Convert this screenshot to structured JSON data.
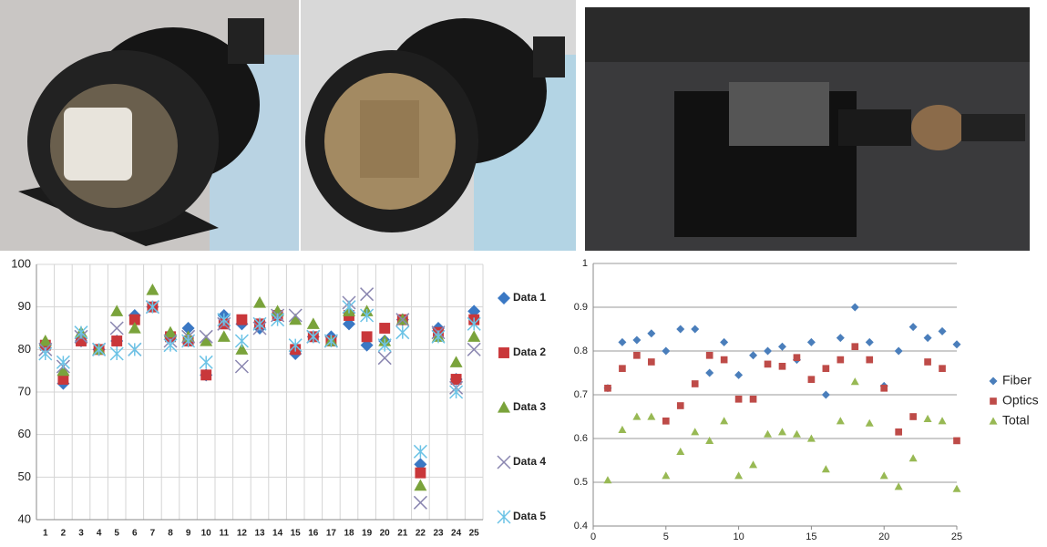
{
  "chart_data": [
    {
      "type": "scatter",
      "categories": [
        "1",
        "2",
        "3",
        "4",
        "5",
        "6",
        "7",
        "8",
        "9",
        "10",
        "11",
        "12",
        "13",
        "14",
        "15",
        "16",
        "17",
        "18",
        "19",
        "20",
        "21",
        "22",
        "23",
        "24",
        "25"
      ],
      "ylim": [
        40,
        100
      ],
      "yticks": [
        40,
        50,
        60,
        70,
        80,
        90,
        100
      ],
      "grid": "both",
      "legend": "right",
      "series": [
        {
          "name": "Data 1",
          "color": "#3a78c4",
          "marker": "diamond",
          "values": [
            81,
            72,
            82,
            80,
            82,
            88,
            90,
            83,
            85,
            74,
            88,
            86,
            85,
            88,
            79,
            83,
            83,
            86,
            81,
            82,
            87,
            53,
            85,
            73,
            89
          ]
        },
        {
          "name": "Data 2",
          "color": "#c9373a",
          "marker": "square",
          "values": [
            81,
            73,
            82,
            80,
            82,
            87,
            90,
            83,
            82,
            74,
            86,
            87,
            86,
            88,
            80,
            83,
            82,
            88,
            83,
            85,
            87,
            51,
            84,
            73,
            87
          ]
        },
        {
          "name": "Data 3",
          "color": "#7aa33b",
          "marker": "triangle",
          "values": [
            82,
            75,
            84,
            80,
            89,
            85,
            94,
            84,
            83,
            82,
            83,
            80,
            91,
            89,
            87,
            86,
            82,
            89,
            89,
            82,
            87,
            48,
            83,
            77,
            83
          ]
        },
        {
          "name": "Data 4",
          "color": "#8a86b0",
          "marker": "x",
          "values": [
            80,
            76,
            83,
            80,
            85,
            80,
            90,
            82,
            83,
            83,
            86,
            76,
            85,
            88,
            88,
            83,
            82,
            91,
            93,
            78,
            87,
            44,
            84,
            71,
            80
          ]
        },
        {
          "name": "Data 5",
          "color": "#6cc3e6",
          "marker": "asterisk",
          "values": [
            79,
            77,
            84,
            80,
            79,
            80,
            90,
            81,
            82,
            77,
            87,
            82,
            86,
            87,
            81,
            83,
            82,
            90,
            88,
            81,
            84,
            56,
            83,
            70,
            86
          ]
        }
      ]
    },
    {
      "type": "scatter",
      "x": [
        1,
        2,
        3,
        4,
        5,
        6,
        7,
        8,
        9,
        10,
        11,
        12,
        13,
        14,
        15,
        16,
        17,
        18,
        19,
        20,
        21,
        22,
        23,
        24,
        25
      ],
      "xlim": [
        0,
        25
      ],
      "xticks": [
        0,
        5,
        10,
        15,
        20,
        25
      ],
      "ylim": [
        0.4,
        1
      ],
      "yticks": [
        0.4,
        0.5,
        0.6,
        0.7,
        0.8,
        0.9,
        1
      ],
      "grid": "y",
      "legend": "right",
      "series": [
        {
          "name": "Fiber",
          "color": "#4a7ebb",
          "marker": "diamond",
          "values": [
            0.715,
            0.82,
            0.825,
            0.84,
            0.8,
            0.85,
            0.85,
            0.75,
            0.82,
            0.745,
            0.79,
            0.8,
            0.81,
            0.78,
            0.82,
            0.7,
            0.83,
            0.9,
            0.82,
            0.72,
            0.8,
            0.855,
            0.83,
            0.845,
            0.815
          ]
        },
        {
          "name": "Optics",
          "color": "#be4b48",
          "marker": "square",
          "values": [
            0.715,
            0.76,
            0.79,
            0.775,
            0.64,
            0.675,
            0.725,
            0.79,
            0.78,
            0.69,
            0.69,
            0.77,
            0.765,
            0.785,
            0.735,
            0.76,
            0.78,
            0.81,
            0.78,
            0.715,
            0.615,
            0.65,
            0.775,
            0.76,
            0.595
          ]
        },
        {
          "name": "Total",
          "color": "#98b954",
          "marker": "triangle",
          "values": [
            0.505,
            0.62,
            0.65,
            0.65,
            0.515,
            0.57,
            0.615,
            0.595,
            0.64,
            0.515,
            0.54,
            0.61,
            0.615,
            0.61,
            0.6,
            0.53,
            0.64,
            0.73,
            0.635,
            0.515,
            0.49,
            0.555,
            0.645,
            0.64,
            0.485
          ]
        }
      ]
    }
  ]
}
